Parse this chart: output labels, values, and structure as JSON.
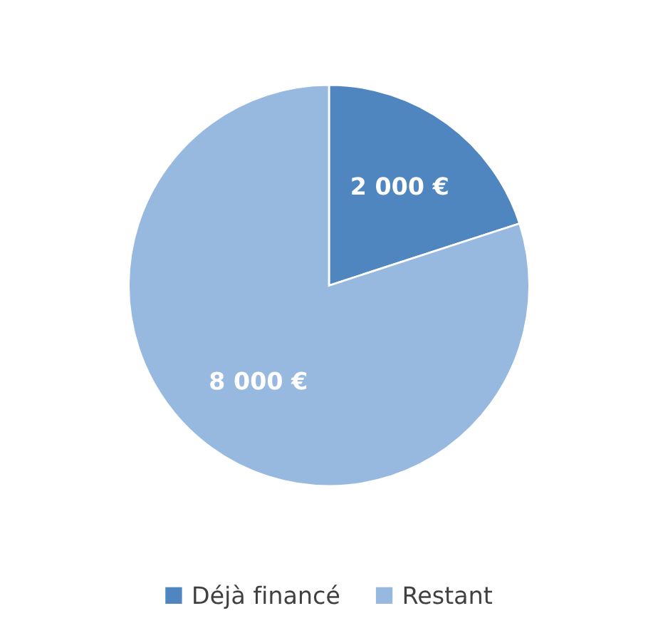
{
  "chart_data": {
    "type": "pie",
    "categories": [
      "Déjà financé",
      "Restant"
    ],
    "values": [
      2000,
      8000
    ],
    "value_labels": [
      "2 000 €",
      "8 000 €"
    ],
    "colors": [
      "#4f86c0",
      "#97b9e0"
    ],
    "legend": "bottom"
  }
}
